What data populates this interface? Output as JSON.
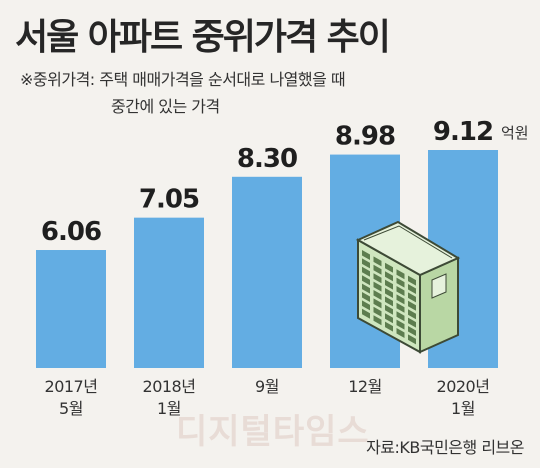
{
  "title": "서울 아파트 중위가격 추이",
  "note_line1": "※중위가격: 주택 매매가격을 순서대로 나열했을 때",
  "note_line2": "중간에 있는 가격",
  "source": "자료:KB국민은행 리브온",
  "watermark": "디지털타임스",
  "bar_color": "#63ade3",
  "chart_data": {
    "type": "bar",
    "title": "서울 아파트 중위가격 추이",
    "xlabel": "",
    "ylabel": "",
    "unit": "억원",
    "categories": [
      [
        "2017년",
        "5월"
      ],
      [
        "2018년",
        "1월"
      ],
      [
        "9월"
      ],
      [
        "12월"
      ],
      [
        "2020년",
        "1월"
      ]
    ],
    "values": [
      6.06,
      7.05,
      8.3,
      8.98,
      9.12
    ],
    "value_labels": [
      "6.06",
      "7.05",
      "8.30",
      "8.98",
      "9.12"
    ],
    "ylim": [
      2.45,
      9.12
    ],
    "grid": false,
    "legend": "none"
  }
}
